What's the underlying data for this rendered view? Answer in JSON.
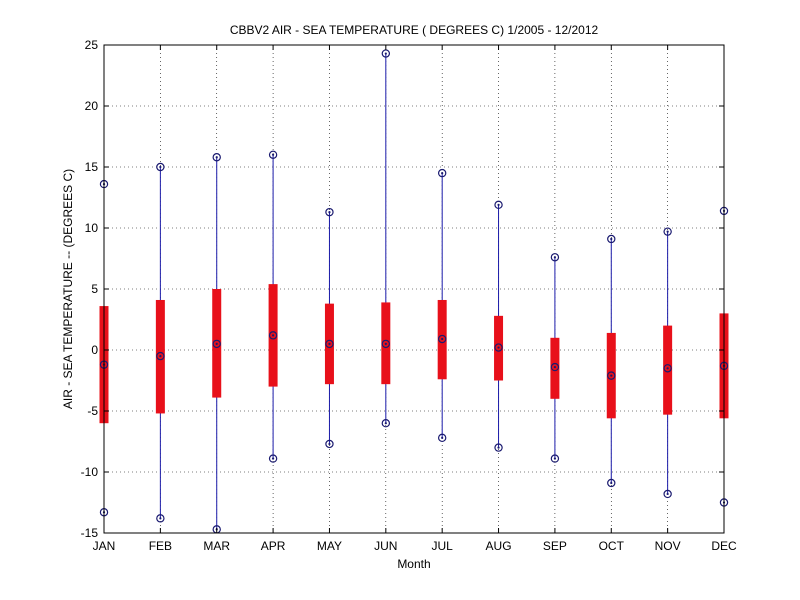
{
  "chart_data": {
    "type": "box",
    "title": "CBBV2  AIR - SEA TEMPERATURE ( DEGREES C) 1/2005 - 12/2012",
    "xlabel": "Month",
    "ylabel": "AIR - SEA TEMPERATURE -- (DEGREES C)",
    "ylim": [
      -15,
      25
    ],
    "yticks": [
      -15,
      -10,
      -5,
      0,
      5,
      10,
      15,
      20,
      25
    ],
    "grid": true,
    "categories": [
      "JAN",
      "FEB",
      "MAR",
      "APR",
      "MAY",
      "JUN",
      "JUL",
      "AUG",
      "SEP",
      "OCT",
      "NOV",
      "DEC"
    ],
    "series": [
      {
        "min": [
          -13.3,
          -13.8,
          -14.7,
          -8.9,
          -7.7,
          -6.0,
          -7.2,
          -8.0,
          -8.9,
          -10.9,
          -11.8,
          -12.5
        ],
        "q1": [
          -6.0,
          -5.2,
          -3.9,
          -3.0,
          -2.8,
          -2.8,
          -2.4,
          -2.5,
          -4.0,
          -5.6,
          -5.3,
          -5.6
        ],
        "median": [
          -1.2,
          -0.5,
          0.5,
          1.2,
          0.5,
          0.5,
          0.9,
          0.2,
          -1.4,
          -2.1,
          -1.5,
          -1.3
        ],
        "q3": [
          3.6,
          4.1,
          5.0,
          5.4,
          3.8,
          3.9,
          4.1,
          2.8,
          1.0,
          1.4,
          2.0,
          3.0
        ],
        "max": [
          13.6,
          15.0,
          15.8,
          16.0,
          11.3,
          24.3,
          14.5,
          11.9,
          7.6,
          9.1,
          9.7,
          11.4
        ]
      }
    ]
  },
  "colors": {
    "box": "#e8101a",
    "whisker": "#1a1aa8",
    "marker": "#1a1a70",
    "grid": "#000000"
  }
}
